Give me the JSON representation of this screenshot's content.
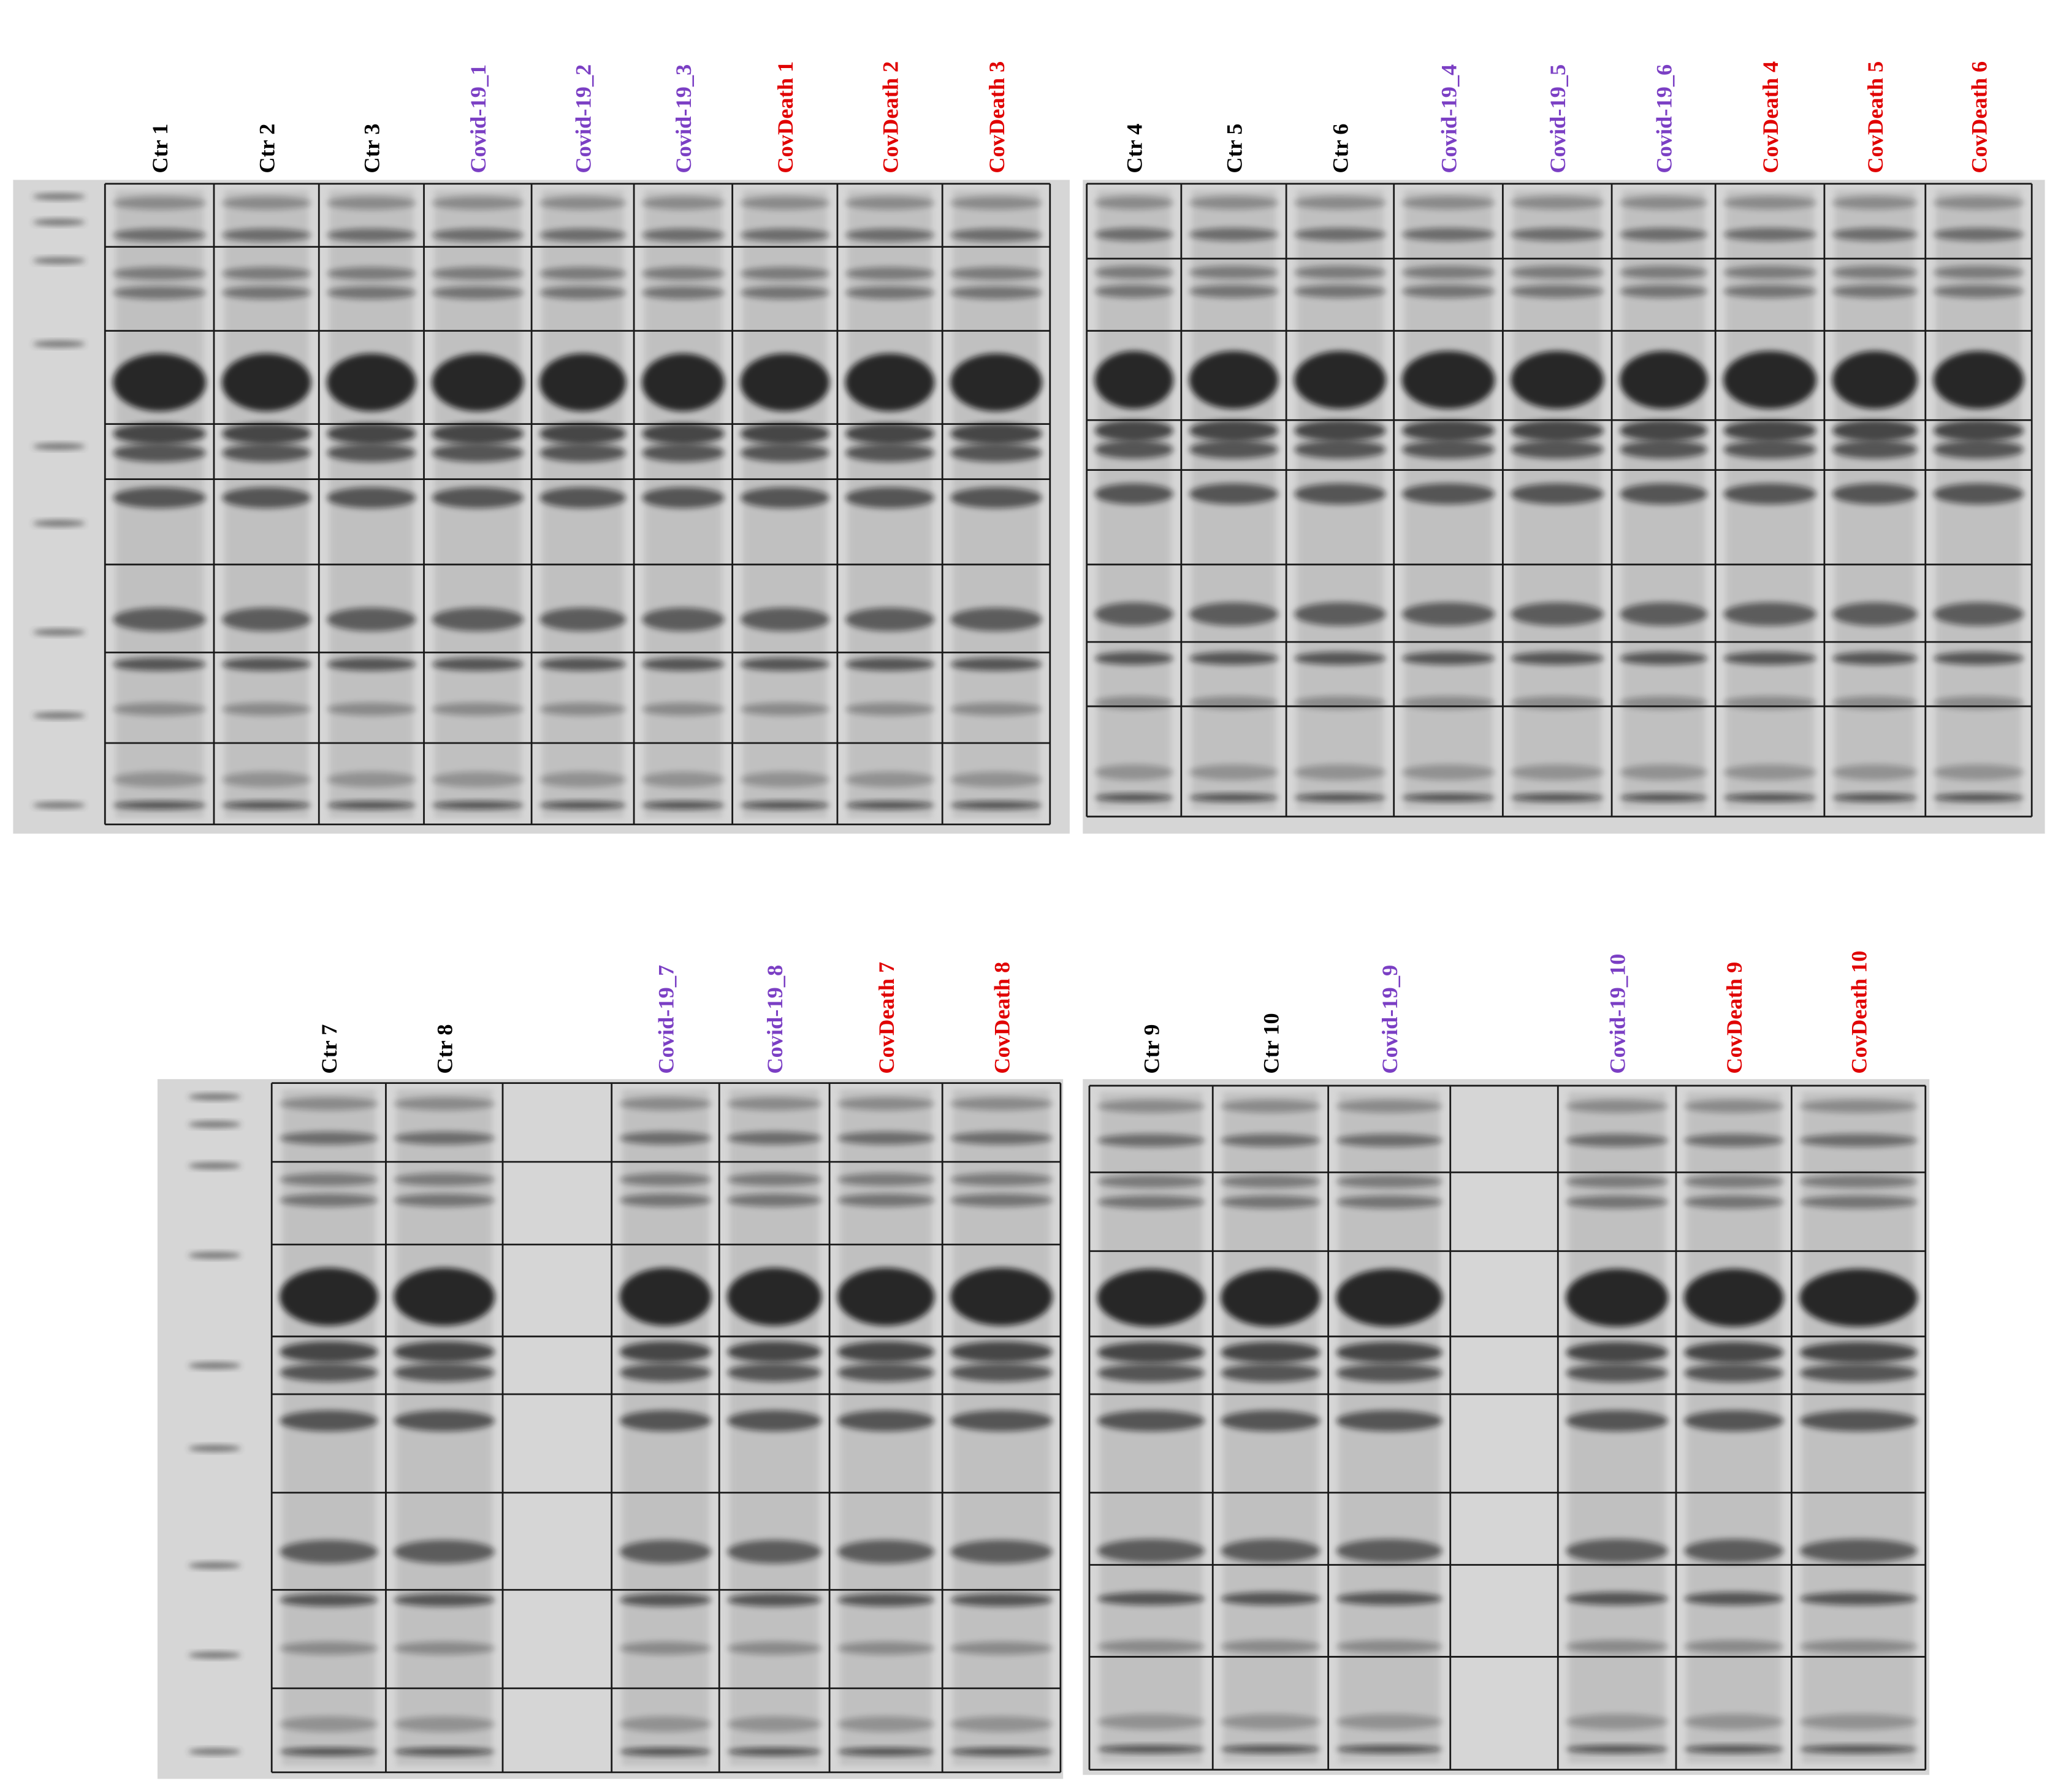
{
  "panels": [
    {
      "lanes": [
        {
          "label": "Ctr 1",
          "color": "#000000"
        },
        {
          "label": "Ctr 2",
          "color": "#000000"
        },
        {
          "label": "Ctr 3",
          "color": "#000000"
        },
        {
          "label": "Covid-19_1",
          "color": "#7b3fc4"
        },
        {
          "label": "Covid-19_2",
          "color": "#7b3fc4"
        },
        {
          "label": "Covid-19_3",
          "color": "#7b3fc4"
        },
        {
          "label": "CovDeath 1",
          "color": "#e00000"
        },
        {
          "label": "CovDeath 2",
          "color": "#e00000"
        },
        {
          "label": "CovDeath 3",
          "color": "#e00000"
        }
      ]
    },
    {
      "lanes": [
        {
          "label": "Ctr 4",
          "color": "#000000"
        },
        {
          "label": "Ctr 5",
          "color": "#000000"
        },
        {
          "label": "Ctr 6",
          "color": "#000000"
        },
        {
          "label": "Covid-19_4",
          "color": "#7b3fc4"
        },
        {
          "label": "Covid-19_5",
          "color": "#7b3fc4"
        },
        {
          "label": "Covid-19_6",
          "color": "#7b3fc4"
        },
        {
          "label": "CovDeath 4",
          "color": "#e00000"
        },
        {
          "label": "CovDeath 5",
          "color": "#e00000"
        },
        {
          "label": "CovDeath 6",
          "color": "#e00000"
        }
      ]
    },
    {
      "lanes": [
        {
          "label": "Ctr 7",
          "color": "#000000"
        },
        {
          "label": "Ctr 8",
          "color": "#000000"
        },
        null,
        {
          "label": "Covid-19_7",
          "color": "#7b3fc4"
        },
        {
          "label": "Covid-19_8",
          "color": "#7b3fc4"
        },
        {
          "label": "CovDeath 7",
          "color": "#e00000"
        },
        {
          "label": "CovDeath 8",
          "color": "#e00000"
        }
      ]
    },
    {
      "lanes": [
        {
          "label": "Ctr 9",
          "color": "#000000"
        },
        {
          "label": "Ctr 10",
          "color": "#000000"
        },
        {
          "label": "Covid-19_9",
          "color": "#7b3fc4"
        },
        null,
        {
          "label": "Covid-19_10",
          "color": "#7b3fc4"
        },
        {
          "label": "CovDeath 9",
          "color": "#e00000"
        },
        {
          "label": "CovDeath 10",
          "color": "#e00000"
        }
      ]
    }
  ]
}
